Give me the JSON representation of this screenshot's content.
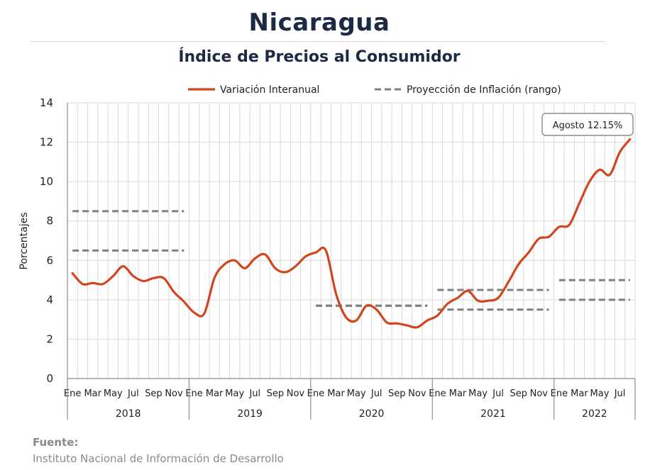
{
  "header": {
    "title": "Nicaragua",
    "subtitle": "Índice de Precios al Consumidor"
  },
  "footer": {
    "source_label": "Fuente:",
    "source_text": "Instituto Nacional de Información de  Desarrollo"
  },
  "chart_data": {
    "type": "line",
    "title": "Índice de Precios al Consumidor",
    "ylabel": "Porcentajes",
    "xlabel": "",
    "ylim": [
      0,
      14
    ],
    "yticks": [
      0,
      2,
      4,
      6,
      8,
      10,
      12,
      14
    ],
    "grid": true,
    "legend_position": "top",
    "month_tick_labels": [
      "Ene",
      "Mar",
      "May",
      "Jul",
      "Sep",
      "Nov"
    ],
    "years": [
      {
        "label": "2018",
        "start_month": 0,
        "months": 12
      },
      {
        "label": "2019",
        "start_month": 12,
        "months": 12
      },
      {
        "label": "2020",
        "start_month": 24,
        "months": 12
      },
      {
        "label": "2021",
        "start_month": 36,
        "months": 12
      },
      {
        "label": "2022",
        "start_month": 48,
        "months": 8
      }
    ],
    "series": [
      {
        "name": "Variación Interanual",
        "color": "#d2461f",
        "style": "solid",
        "values": [
          5.35,
          4.8,
          4.85,
          4.8,
          5.2,
          5.7,
          5.2,
          4.95,
          5.1,
          5.1,
          4.4,
          3.9,
          3.35,
          3.3,
          5.1,
          5.8,
          6.0,
          5.6,
          6.1,
          6.3,
          5.6,
          5.4,
          5.7,
          6.2,
          6.4,
          6.5,
          4.3,
          3.1,
          2.95,
          3.7,
          3.5,
          2.85,
          2.8,
          2.7,
          2.6,
          2.95,
          3.2,
          3.8,
          4.1,
          4.45,
          3.95,
          3.95,
          4.1,
          4.9,
          5.8,
          6.4,
          7.1,
          7.2,
          7.7,
          7.8,
          8.9,
          10.0,
          10.6,
          10.35,
          11.5,
          12.15
        ]
      },
      {
        "name": "Proyección de Inflación (rango)",
        "color": "#7f7f7f",
        "style": "dashed",
        "segments": [
          {
            "start_month": 0,
            "end_month": 11,
            "low": 6.5,
            "high": 8.5
          },
          {
            "start_month": 24,
            "end_month": 35,
            "low": 3.7,
            "high": 3.7
          },
          {
            "start_month": 36,
            "end_month": 47,
            "low": 3.5,
            "high": 4.5
          },
          {
            "start_month": 48,
            "end_month": 55,
            "low": 4.0,
            "high": 5.0
          }
        ]
      }
    ],
    "annotation": {
      "text": "Agosto 12.15%",
      "month": 55,
      "value": 12.15
    }
  }
}
